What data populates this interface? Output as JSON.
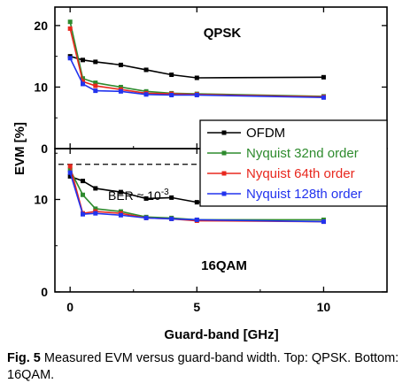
{
  "chart_data": [
    {
      "type": "line",
      "title": "QPSK",
      "xlabel": "Guard-band [GHz]",
      "ylabel": "EVM [%]",
      "xlim": [
        -0.6,
        12.5
      ],
      "ylim": [
        0,
        23
      ],
      "xticks": [
        "0",
        "5",
        "10"
      ],
      "yticks": [
        "0",
        "10",
        "20"
      ],
      "x": [
        0,
        0.5,
        1,
        2,
        3,
        4,
        5,
        10
      ],
      "series": [
        {
          "name": "OFDM",
          "color": "#000000",
          "values": [
            15.0,
            14.4,
            14.1,
            13.6,
            12.8,
            12.0,
            11.5,
            11.6
          ]
        },
        {
          "name": "Nyquist 32nd order",
          "color": "#2e8b2e",
          "values": [
            20.6,
            11.4,
            10.7,
            10.0,
            9.3,
            9.0,
            8.9,
            8.5
          ]
        },
        {
          "name": "Nyquist 64th order",
          "color": "#e8281e",
          "values": [
            19.5,
            10.9,
            10.2,
            9.6,
            9.0,
            8.9,
            8.8,
            8.4
          ]
        },
        {
          "name": "Nyquist 128th order",
          "color": "#2233ee",
          "values": [
            14.7,
            10.5,
            9.4,
            9.3,
            8.8,
            8.7,
            8.7,
            8.3
          ]
        }
      ]
    },
    {
      "type": "line",
      "title": "16QAM",
      "xlabel": "Guard-band [GHz]",
      "ylabel": "EVM [%]",
      "xlim": [
        -0.6,
        12.5
      ],
      "ylim": [
        0,
        15.5
      ],
      "xticks": [
        "0",
        "5",
        "10"
      ],
      "yticks": [
        "0",
        "10"
      ],
      "x": [
        0,
        0.5,
        1,
        2,
        3,
        4,
        5,
        10
      ],
      "threshold": {
        "y": 13.8,
        "label": "BER ≈ 10",
        "label_sup": "-3"
      },
      "series": [
        {
          "name": "OFDM",
          "color": "#000000",
          "values": [
            12.5,
            12.0,
            11.2,
            10.8,
            10.1,
            10.2,
            9.7,
            10.6
          ]
        },
        {
          "name": "Nyquist 32nd order",
          "color": "#2e8b2e",
          "values": [
            13.2,
            10.5,
            9.0,
            8.7,
            8.1,
            8.0,
            7.8,
            7.8
          ]
        },
        {
          "name": "Nyquist 64th order",
          "color": "#e8281e",
          "values": [
            13.6,
            8.5,
            8.7,
            8.5,
            8.0,
            7.9,
            7.7,
            7.6
          ]
        },
        {
          "name": "Nyquist 128th order",
          "color": "#2233ee",
          "values": [
            12.9,
            8.4,
            8.5,
            8.3,
            8.0,
            7.9,
            7.8,
            7.6
          ]
        }
      ]
    }
  ],
  "legend": {
    "placement": "center-right",
    "entries": [
      "OFDM",
      "Nyquist 32nd order",
      "Nyquist 64th order",
      "Nyquist 128th order"
    ]
  },
  "caption": {
    "label": "Fig. 5",
    "text": " Measured EVM versus guard-band width. Top: QPSK. Bottom: 16QAM."
  }
}
